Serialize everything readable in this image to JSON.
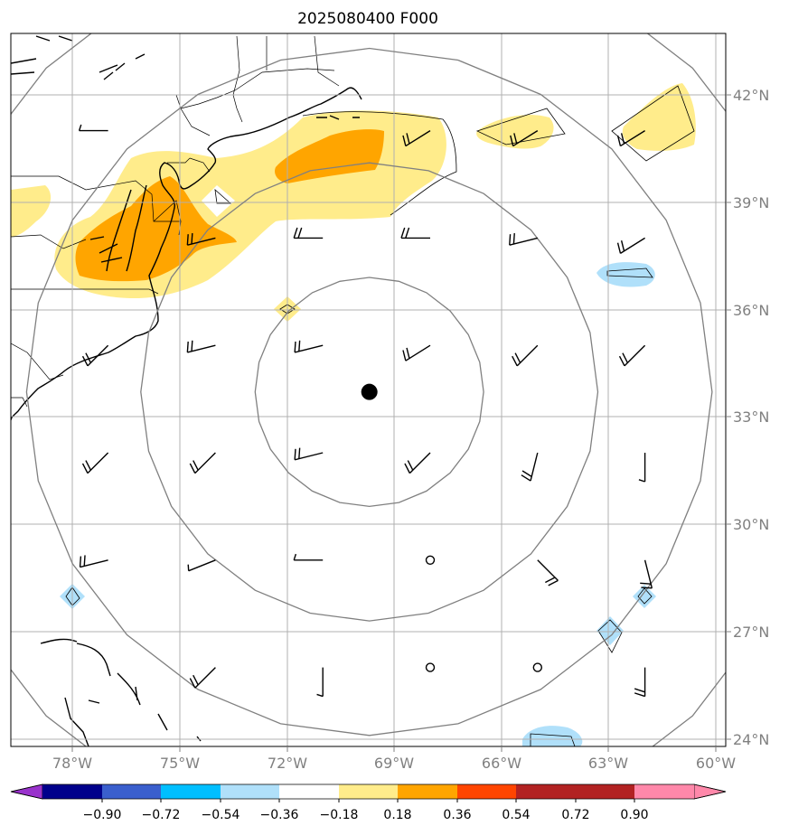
{
  "title": "2025080400 F000",
  "map": {
    "lon_range": [
      -80,
      -60
    ],
    "lat_range": [
      23.9,
      43.6
    ],
    "gridlines": true,
    "lon_ticks": [
      {
        "value": -78,
        "label": "78°W"
      },
      {
        "value": -75,
        "label": "75°W"
      },
      {
        "value": -72,
        "label": "72°W"
      },
      {
        "value": -69,
        "label": "69°W"
      },
      {
        "value": -66,
        "label": "66°W"
      },
      {
        "value": -63,
        "label": "63°W"
      },
      {
        "value": -60,
        "label": "60°W"
      }
    ],
    "lat_ticks": [
      {
        "value": 42,
        "label": "42°N"
      },
      {
        "value": 39,
        "label": "39°N"
      },
      {
        "value": 36,
        "label": "36°N"
      },
      {
        "value": 33,
        "label": "33°N"
      },
      {
        "value": 30,
        "label": "30°N"
      },
      {
        "value": 27,
        "label": "27°N"
      },
      {
        "value": 24,
        "label": "24°N"
      }
    ],
    "center": {
      "lon": -69.7,
      "lat": 33.7
    },
    "range_rings_deg": [
      3.2,
      6.4,
      9.6,
      12.8
    ],
    "colors": {
      "ring": "#808080",
      "grid": "#b0b0b0",
      "coast": "#000000",
      "center_marker": "#000000"
    }
  },
  "colorbar": {
    "extend": "both",
    "tick_labels": [
      "−0.90",
      "−0.72",
      "−0.54",
      "−0.36",
      "−0.18",
      "0.18",
      "0.36",
      "0.54",
      "0.72",
      "0.90"
    ],
    "colors": [
      "#9932cc",
      "#00008b",
      "#3a5fcd",
      "#00bfff",
      "#b0e0fa",
      "#ffffff",
      "#ffec8b",
      "#ffa500",
      "#ff4500",
      "#b22222",
      "#ff88aa"
    ]
  },
  "chart_data": {
    "type": "map",
    "field_shading": [
      {
        "level": "0.18–0.36",
        "color": "#ffec8b",
        "region": "Mid-Atlantic coast to south of New England"
      },
      {
        "level": "0.36–0.54",
        "color": "#ffa500",
        "region": "Chesapeake Bay / Delmarva and south of Long Island"
      },
      {
        "level": "0.18–0.36",
        "color": "#ffec8b",
        "region": "near 41°N 65°W and 41.5°N 62°W"
      },
      {
        "level": "-0.36–-0.18",
        "color": "#b0e0fa",
        "region": "near 37°N 62°W, 28°N 78°W, 27°N 63°W, 28°N 62°W, 24°N 64.5°W"
      }
    ],
    "wind_barbs": [
      {
        "lon": -77,
        "lat": 41,
        "u": 5,
        "v": 0
      },
      {
        "lon": -68,
        "lat": 41,
        "u": 8,
        "v": 5
      },
      {
        "lon": -65,
        "lat": 41,
        "u": 8,
        "v": 5
      },
      {
        "lon": -62,
        "lat": 41,
        "u": 8,
        "v": 5
      },
      {
        "lon": -74,
        "lat": 38,
        "u": 8,
        "v": 2
      },
      {
        "lon": -71,
        "lat": 38,
        "u": 8,
        "v": 0
      },
      {
        "lon": -68,
        "lat": 38,
        "u": 8,
        "v": 0
      },
      {
        "lon": -65,
        "lat": 38,
        "u": 8,
        "v": 2
      },
      {
        "lon": -62,
        "lat": 38,
        "u": 8,
        "v": 5
      },
      {
        "lon": -77,
        "lat": 35,
        "u": 5,
        "v": 5
      },
      {
        "lon": -74,
        "lat": 35,
        "u": 8,
        "v": 2
      },
      {
        "lon": -71,
        "lat": 35,
        "u": 8,
        "v": 2
      },
      {
        "lon": -68,
        "lat": 35,
        "u": 8,
        "v": 5
      },
      {
        "lon": -65,
        "lat": 35,
        "u": 5,
        "v": 5
      },
      {
        "lon": -62,
        "lat": 35,
        "u": 5,
        "v": 5
      },
      {
        "lon": -77,
        "lat": 32,
        "u": 5,
        "v": 5
      },
      {
        "lon": -74,
        "lat": 32,
        "u": 5,
        "v": 5
      },
      {
        "lon": -71,
        "lat": 32,
        "u": 8,
        "v": 2
      },
      {
        "lon": -68,
        "lat": 32,
        "u": 5,
        "v": 5
      },
      {
        "lon": -65,
        "lat": 32,
        "u": 2,
        "v": 8
      },
      {
        "lon": -62,
        "lat": 32,
        "u": 0,
        "v": 5
      },
      {
        "lon": -77,
        "lat": 29,
        "u": 8,
        "v": 2
      },
      {
        "lon": -74,
        "lat": 29,
        "u": 5,
        "v": 2
      },
      {
        "lon": -71,
        "lat": 29,
        "u": 5,
        "v": 0
      },
      {
        "lon": -68,
        "lat": 29,
        "u": 0,
        "v": 0
      },
      {
        "lon": -65,
        "lat": 29,
        "u": -5,
        "v": 5
      },
      {
        "lon": -62,
        "lat": 29,
        "u": -2,
        "v": 8
      },
      {
        "lon": -74,
        "lat": 26,
        "u": 5,
        "v": 5
      },
      {
        "lon": -71,
        "lat": 26,
        "u": 0,
        "v": 5
      },
      {
        "lon": -68,
        "lat": 26,
        "u": 0,
        "v": 0
      },
      {
        "lon": -65,
        "lat": 26,
        "u": 0,
        "v": 0
      },
      {
        "lon": -62,
        "lat": 26,
        "u": 0,
        "v": 8
      }
    ]
  }
}
